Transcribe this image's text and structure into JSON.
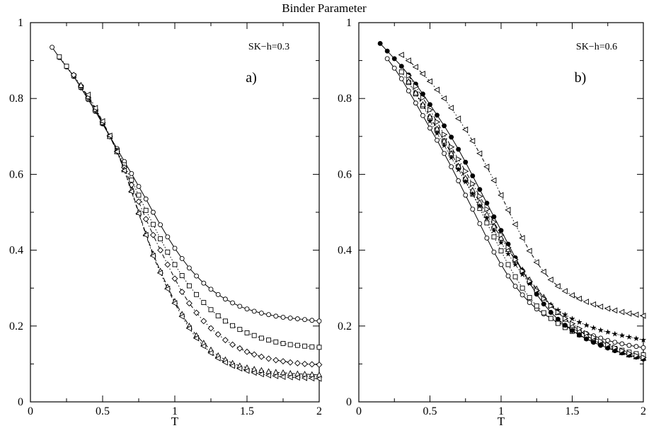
{
  "figure_title": "Binder Parameter",
  "chart_data": [
    {
      "type": "line",
      "panel_id": "a",
      "panel_tag": "a)",
      "annotation": "SK−h=0.3",
      "xlabel": "T",
      "ylabel": "",
      "xlim": [
        0,
        2
      ],
      "ylim": [
        0,
        1
      ],
      "xticks": [
        "0",
        "0.5",
        "1",
        "1.5",
        "2"
      ],
      "yticks": [
        "0",
        "0.2",
        "0.4",
        "0.6",
        "0.8",
        "1"
      ],
      "grid": false,
      "series": [
        {
          "marker": "circle",
          "dash": "solid",
          "x": [
            0.15,
            0.2,
            0.25,
            0.3,
            0.35,
            0.4,
            0.45,
            0.5,
            0.55,
            0.6,
            0.65,
            0.7,
            0.75,
            0.8,
            0.85,
            0.9,
            0.95,
            1.0,
            1.05,
            1.1,
            1.15,
            1.2,
            1.25,
            1.3,
            1.35,
            1.4,
            1.45,
            1.5,
            1.55,
            1.6,
            1.65,
            1.7,
            1.75,
            1.8,
            1.85,
            1.9,
            1.95,
            2.0
          ],
          "y": [
            0.935,
            0.908,
            0.883,
            0.858,
            0.828,
            0.797,
            0.766,
            0.733,
            0.7,
            0.668,
            0.634,
            0.602,
            0.568,
            0.535,
            0.5,
            0.467,
            0.435,
            0.405,
            0.378,
            0.353,
            0.332,
            0.313,
            0.297,
            0.283,
            0.271,
            0.261,
            0.252,
            0.245,
            0.239,
            0.234,
            0.23,
            0.226,
            0.223,
            0.221,
            0.219,
            0.217,
            0.215,
            0.213
          ]
        },
        {
          "marker": "square",
          "dash": "dot",
          "x": [
            0.2,
            0.25,
            0.3,
            0.35,
            0.4,
            0.45,
            0.5,
            0.55,
            0.6,
            0.65,
            0.7,
            0.75,
            0.8,
            0.85,
            0.9,
            0.95,
            1.0,
            1.05,
            1.1,
            1.15,
            1.2,
            1.25,
            1.3,
            1.35,
            1.4,
            1.45,
            1.5,
            1.55,
            1.6,
            1.65,
            1.7,
            1.75,
            1.8,
            1.85,
            1.9,
            1.95,
            2.0
          ],
          "y": [
            0.91,
            0.885,
            0.86,
            0.83,
            0.8,
            0.768,
            0.735,
            0.7,
            0.663,
            0.625,
            0.585,
            0.545,
            0.505,
            0.468,
            0.43,
            0.395,
            0.362,
            0.333,
            0.306,
            0.283,
            0.262,
            0.243,
            0.227,
            0.213,
            0.201,
            0.191,
            0.182,
            0.175,
            0.168,
            0.163,
            0.158,
            0.154,
            0.151,
            0.149,
            0.147,
            0.145,
            0.144
          ]
        },
        {
          "marker": "diamond",
          "dash": "dashdot",
          "x": [
            0.3,
            0.35,
            0.4,
            0.45,
            0.5,
            0.55,
            0.6,
            0.65,
            0.7,
            0.75,
            0.8,
            0.85,
            0.9,
            0.95,
            1.0,
            1.05,
            1.1,
            1.15,
            1.2,
            1.25,
            1.3,
            1.35,
            1.4,
            1.45,
            1.5,
            1.55,
            1.6,
            1.65,
            1.7,
            1.75,
            1.8,
            1.85,
            1.9,
            1.95,
            2.0
          ],
          "y": [
            0.862,
            0.833,
            0.803,
            0.77,
            0.736,
            0.7,
            0.66,
            0.618,
            0.572,
            0.528,
            0.482,
            0.44,
            0.4,
            0.362,
            0.325,
            0.29,
            0.26,
            0.235,
            0.213,
            0.194,
            0.178,
            0.163,
            0.151,
            0.141,
            0.132,
            0.125,
            0.119,
            0.114,
            0.11,
            0.107,
            0.104,
            0.102,
            0.1,
            0.099,
            0.098
          ]
        },
        {
          "marker": "triangle-up",
          "dash": "longdash",
          "x": [
            0.35,
            0.4,
            0.45,
            0.5,
            0.55,
            0.6,
            0.65,
            0.7,
            0.75,
            0.8,
            0.85,
            0.9,
            0.95,
            1.0,
            1.05,
            1.1,
            1.15,
            1.2,
            1.25,
            1.3,
            1.35,
            1.4,
            1.45,
            1.5,
            1.55,
            1.6,
            1.65,
            1.7,
            1.75,
            1.8,
            1.85,
            1.9,
            1.95,
            2.0
          ],
          "y": [
            0.835,
            0.805,
            0.772,
            0.737,
            0.7,
            0.66,
            0.612,
            0.558,
            0.5,
            0.443,
            0.39,
            0.345,
            0.303,
            0.265,
            0.231,
            0.2,
            0.175,
            0.155,
            0.137,
            0.122,
            0.111,
            0.102,
            0.095,
            0.09,
            0.086,
            0.083,
            0.08,
            0.078,
            0.077,
            0.075,
            0.074,
            0.073,
            0.072,
            0.071
          ]
        },
        {
          "marker": "triangle-left",
          "dash": "dashdot2",
          "x": [
            0.4,
            0.45,
            0.5,
            0.55,
            0.6,
            0.65,
            0.7,
            0.75,
            0.8,
            0.85,
            0.9,
            0.95,
            1.0,
            1.05,
            1.1,
            1.15,
            1.2,
            1.25,
            1.3,
            1.35,
            1.4,
            1.45,
            1.5,
            1.55,
            1.6,
            1.65,
            1.7,
            1.75,
            1.8,
            1.85,
            1.9,
            1.95,
            2.0
          ],
          "y": [
            0.81,
            0.775,
            0.74,
            0.702,
            0.66,
            0.61,
            0.555,
            0.497,
            0.44,
            0.385,
            0.34,
            0.298,
            0.26,
            0.225,
            0.194,
            0.168,
            0.147,
            0.129,
            0.115,
            0.104,
            0.095,
            0.088,
            0.082,
            0.077,
            0.073,
            0.07,
            0.068,
            0.066,
            0.065,
            0.064,
            0.063,
            0.062,
            0.061
          ]
        }
      ]
    },
    {
      "type": "line",
      "panel_id": "b",
      "panel_tag": "b)",
      "annotation": "SK−h=0.6",
      "xlabel": "T",
      "ylabel": "",
      "xlim": [
        0,
        2
      ],
      "ylim": [
        0,
        1
      ],
      "xticks": [
        "0",
        "0.5",
        "1",
        "1.5",
        "2"
      ],
      "yticks": [
        "0",
        "0.2",
        "0.4",
        "0.6",
        "0.8",
        "1"
      ],
      "grid": false,
      "series": [
        {
          "marker": "circle",
          "dash": "solid",
          "x": [
            0.2,
            0.25,
            0.3,
            0.35,
            0.4,
            0.45,
            0.5,
            0.55,
            0.6,
            0.65,
            0.7,
            0.75,
            0.8,
            0.85,
            0.9,
            0.95,
            1.0,
            1.05,
            1.1,
            1.15,
            1.2,
            1.25,
            1.3,
            1.35,
            1.4,
            1.45,
            1.5,
            1.55,
            1.6,
            1.65,
            1.7,
            1.75,
            1.8,
            1.85,
            1.9,
            1.95,
            2.0
          ],
          "y": [
            0.905,
            0.88,
            0.852,
            0.82,
            0.788,
            0.755,
            0.722,
            0.69,
            0.655,
            0.62,
            0.583,
            0.545,
            0.508,
            0.47,
            0.432,
            0.395,
            0.362,
            0.332,
            0.305,
            0.282,
            0.262,
            0.245,
            0.232,
            0.22,
            0.21,
            0.201,
            0.193,
            0.186,
            0.18,
            0.174,
            0.168,
            0.162,
            0.157,
            0.153,
            0.149,
            0.146,
            0.143
          ]
        },
        {
          "marker": "square",
          "dash": "dot",
          "x": [
            0.3,
            0.35,
            0.4,
            0.45,
            0.5,
            0.55,
            0.6,
            0.65,
            0.7,
            0.75,
            0.8,
            0.85,
            0.9,
            0.95,
            1.0,
            1.05,
            1.1,
            1.15,
            1.2,
            1.25,
            1.3,
            1.35,
            1.4,
            1.45,
            1.5,
            1.55,
            1.6,
            1.65,
            1.7,
            1.75,
            1.8,
            1.85,
            1.9,
            1.95,
            2.0
          ],
          "y": [
            0.87,
            0.842,
            0.812,
            0.78,
            0.748,
            0.718,
            0.688,
            0.655,
            0.62,
            0.585,
            0.548,
            0.51,
            0.472,
            0.435,
            0.398,
            0.362,
            0.33,
            0.3,
            0.275,
            0.253,
            0.235,
            0.22,
            0.207,
            0.196,
            0.186,
            0.177,
            0.168,
            0.16,
            0.153,
            0.146,
            0.141,
            0.136,
            0.131,
            0.127,
            0.124
          ]
        },
        {
          "marker": "triangle-up",
          "dash": "dashdot",
          "x": [
            0.35,
            0.4,
            0.45,
            0.5,
            0.55,
            0.6,
            0.65,
            0.7,
            0.75,
            0.8,
            0.85,
            0.9,
            0.95,
            1.0,
            1.05,
            1.1,
            1.15,
            1.2,
            1.25,
            1.3,
            1.35,
            1.4,
            1.45,
            1.5,
            1.55,
            1.6,
            1.65,
            1.7,
            1.75,
            1.8,
            1.85,
            1.9,
            1.95,
            2.0
          ],
          "y": [
            0.845,
            0.815,
            0.784,
            0.752,
            0.72,
            0.688,
            0.655,
            0.622,
            0.59,
            0.558,
            0.526,
            0.494,
            0.463,
            0.432,
            0.402,
            0.374,
            0.348,
            0.322,
            0.298,
            0.276,
            0.255,
            0.236,
            0.218,
            0.202,
            0.188,
            0.175,
            0.164,
            0.154,
            0.145,
            0.137,
            0.13,
            0.124,
            0.119,
            0.115
          ]
        },
        {
          "marker": "star",
          "dash": "dot",
          "x": [
            0.5,
            0.55,
            0.6,
            0.65,
            0.7,
            0.75,
            0.8,
            0.85,
            0.9,
            0.95,
            1.0,
            1.05,
            1.1,
            1.15,
            1.2,
            1.25,
            1.3,
            1.35,
            1.4,
            1.45,
            1.5,
            1.55,
            1.6,
            1.65,
            1.7,
            1.75,
            1.8,
            1.85,
            1.9,
            1.95,
            2.0
          ],
          "y": [
            0.74,
            0.708,
            0.676,
            0.644,
            0.612,
            0.58,
            0.548,
            0.516,
            0.484,
            0.452,
            0.42,
            0.39,
            0.362,
            0.336,
            0.312,
            0.29,
            0.272,
            0.256,
            0.242,
            0.23,
            0.219,
            0.21,
            0.202,
            0.195,
            0.189,
            0.184,
            0.179,
            0.175,
            0.171,
            0.167,
            0.163
          ]
        },
        {
          "marker": "circle-filled",
          "dash": "solid",
          "x": [
            0.15,
            0.2,
            0.25,
            0.3,
            0.35,
            0.4,
            0.45,
            0.5,
            0.55,
            0.6,
            0.65,
            0.7,
            0.75,
            0.8,
            0.85,
            0.9,
            0.95,
            1.0,
            1.05,
            1.1,
            1.15,
            1.2,
            1.25,
            1.3,
            1.35,
            1.4,
            1.45,
            1.5,
            1.55,
            1.6,
            1.65,
            1.7,
            1.75,
            1.8,
            1.85,
            1.9,
            1.95,
            2.0
          ],
          "y": [
            0.945,
            0.925,
            0.905,
            0.885,
            0.862,
            0.838,
            0.812,
            0.784,
            0.756,
            0.728,
            0.698,
            0.666,
            0.632,
            0.596,
            0.56,
            0.524,
            0.488,
            0.452,
            0.416,
            0.38,
            0.346,
            0.314,
            0.284,
            0.258,
            0.236,
            0.218,
            0.202,
            0.188,
            0.176,
            0.166,
            0.157,
            0.149,
            0.142,
            0.135,
            0.129,
            0.123,
            0.118,
            0.113
          ]
        },
        {
          "marker": "triangle-left",
          "dash": "dashdot2",
          "x": [
            0.3,
            0.35,
            0.4,
            0.45,
            0.5,
            0.55,
            0.6,
            0.65,
            0.7,
            0.75,
            0.8,
            0.85,
            0.9,
            0.95,
            1.0,
            1.05,
            1.1,
            1.15,
            1.2,
            1.25,
            1.3,
            1.35,
            1.4,
            1.45,
            1.5,
            1.55,
            1.6,
            1.65,
            1.7,
            1.75,
            1.8,
            1.85,
            1.9,
            1.95,
            2.0
          ],
          "y": [
            0.915,
            0.9,
            0.883,
            0.865,
            0.845,
            0.823,
            0.8,
            0.775,
            0.747,
            0.718,
            0.688,
            0.655,
            0.62,
            0.584,
            0.545,
            0.506,
            0.468,
            0.432,
            0.398,
            0.368,
            0.343,
            0.322,
            0.305,
            0.292,
            0.281,
            0.272,
            0.264,
            0.257,
            0.251,
            0.246,
            0.241,
            0.237,
            0.233,
            0.23,
            0.227
          ]
        },
        {
          "marker": "triangle-right",
          "dash": "dashdot",
          "x": [
            0.35,
            0.4,
            0.45,
            0.5,
            0.55,
            0.6,
            0.65,
            0.7,
            0.75,
            0.8,
            0.85,
            0.9,
            0.95,
            1.0,
            1.05,
            1.1,
            1.15,
            1.2,
            1.25,
            1.3,
            1.35,
            1.4,
            1.45,
            1.5,
            1.55,
            1.6,
            1.65,
            1.7,
            1.75,
            1.8,
            1.85,
            1.9,
            1.95,
            2.0
          ],
          "y": [
            0.86,
            0.832,
            0.802,
            0.77,
            0.738,
            0.705,
            0.672,
            0.64,
            0.608,
            0.575,
            0.542,
            0.508,
            0.474,
            0.44,
            0.407,
            0.375,
            0.345,
            0.318,
            0.294,
            0.272,
            0.253,
            0.236,
            0.22,
            0.206,
            0.193,
            0.181,
            0.17,
            0.16,
            0.151,
            0.143,
            0.135,
            0.128,
            0.122,
            0.117
          ]
        }
      ]
    }
  ]
}
